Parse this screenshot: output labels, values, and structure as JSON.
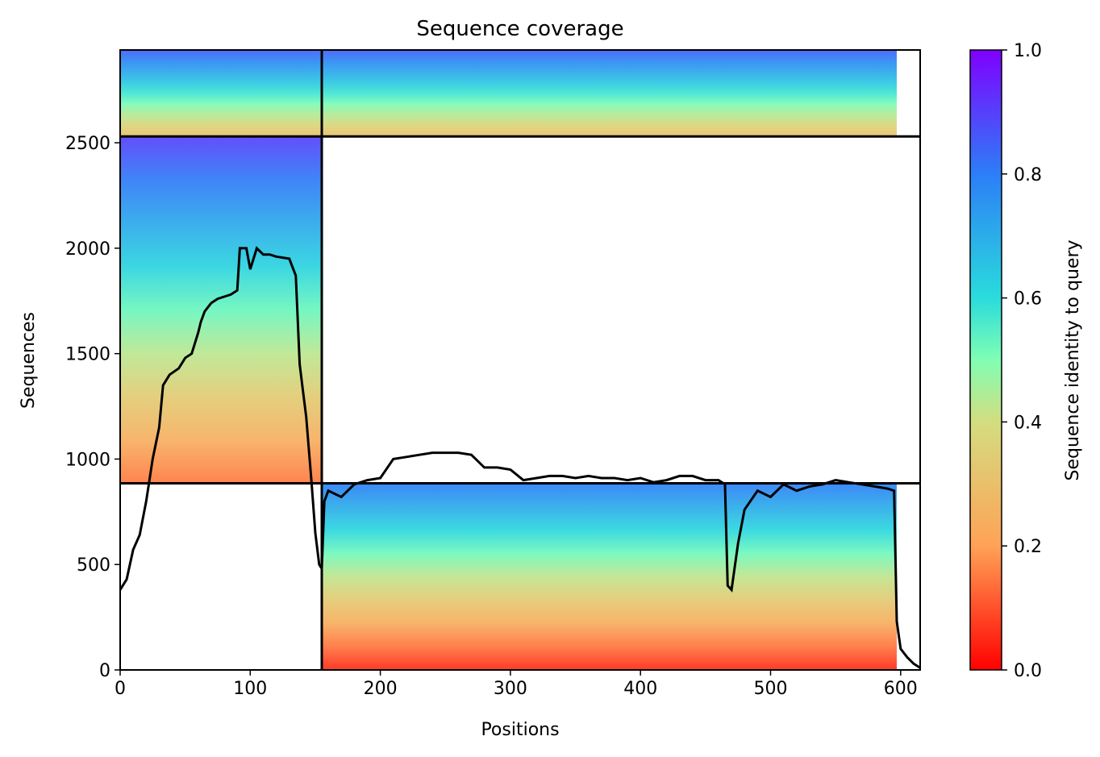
{
  "chart_data": {
    "type": "heatmap",
    "title": "Sequence coverage",
    "xlabel": "Positions",
    "ylabel": "Sequences",
    "colorbar_label": "Sequence identity to query",
    "colormap": "rainbow_r",
    "xlim": [
      0,
      615
    ],
    "ylim": [
      0,
      2940
    ],
    "colorbar_range": [
      0.0,
      1.0
    ],
    "x_ticks": [
      0,
      100,
      200,
      300,
      400,
      500,
      600
    ],
    "y_ticks": [
      0,
      500,
      1000,
      1500,
      2000,
      2500
    ],
    "colorbar_ticks": [
      "0.0",
      "0.2",
      "0.4",
      "0.6",
      "0.8",
      "1.0"
    ],
    "grid": false,
    "divider_positions_x": [
      155
    ],
    "divider_positions_y": [
      885,
      2530
    ],
    "blocks": [
      {
        "x_range": [
          0,
          155
        ],
        "seq_range": [
          885,
          2530
        ],
        "identity_top": 0.9,
        "identity_bottom": 0.15
      },
      {
        "x_range": [
          155,
          597
        ],
        "seq_range": [
          0,
          885
        ],
        "identity_top": 0.8,
        "identity_bottom": 0.05
      },
      {
        "x_range": [
          0,
          597
        ],
        "seq_range": [
          2530,
          2940
        ],
        "identity_top": 0.85,
        "identity_bottom": 0.3
      }
    ],
    "coverage_line": {
      "x": [
        0,
        5,
        10,
        15,
        20,
        25,
        30,
        33,
        38,
        45,
        50,
        55,
        60,
        62,
        65,
        70,
        75,
        80,
        85,
        90,
        92,
        97,
        100,
        105,
        110,
        115,
        120,
        130,
        135,
        138,
        140,
        143,
        147,
        150,
        153,
        155,
        157,
        160,
        170,
        180,
        190,
        200,
        210,
        220,
        230,
        240,
        250,
        260,
        270,
        280,
        285,
        290,
        300,
        310,
        320,
        330,
        340,
        350,
        360,
        370,
        380,
        390,
        400,
        410,
        420,
        430,
        440,
        450,
        460,
        465,
        467,
        470,
        475,
        480,
        490,
        500,
        510,
        520,
        530,
        540,
        550,
        560,
        570,
        580,
        590,
        595,
        597,
        600,
        605,
        610,
        615
      ],
      "y": [
        380,
        430,
        570,
        640,
        800,
        1000,
        1150,
        1350,
        1400,
        1430,
        1480,
        1500,
        1600,
        1650,
        1700,
        1740,
        1760,
        1770,
        1780,
        1800,
        2000,
        2000,
        1900,
        2000,
        1970,
        1970,
        1960,
        1950,
        1870,
        1450,
        1350,
        1200,
        900,
        650,
        500,
        480,
        800,
        850,
        820,
        880,
        900,
        910,
        1000,
        1010,
        1020,
        1030,
        1030,
        1030,
        1020,
        960,
        960,
        960,
        950,
        900,
        910,
        920,
        920,
        910,
        920,
        910,
        910,
        900,
        910,
        890,
        900,
        920,
        920,
        900,
        900,
        880,
        400,
        380,
        600,
        760,
        850,
        820,
        880,
        850,
        870,
        880,
        900,
        890,
        880,
        870,
        860,
        850,
        230,
        100,
        60,
        30,
        10
      ]
    }
  }
}
